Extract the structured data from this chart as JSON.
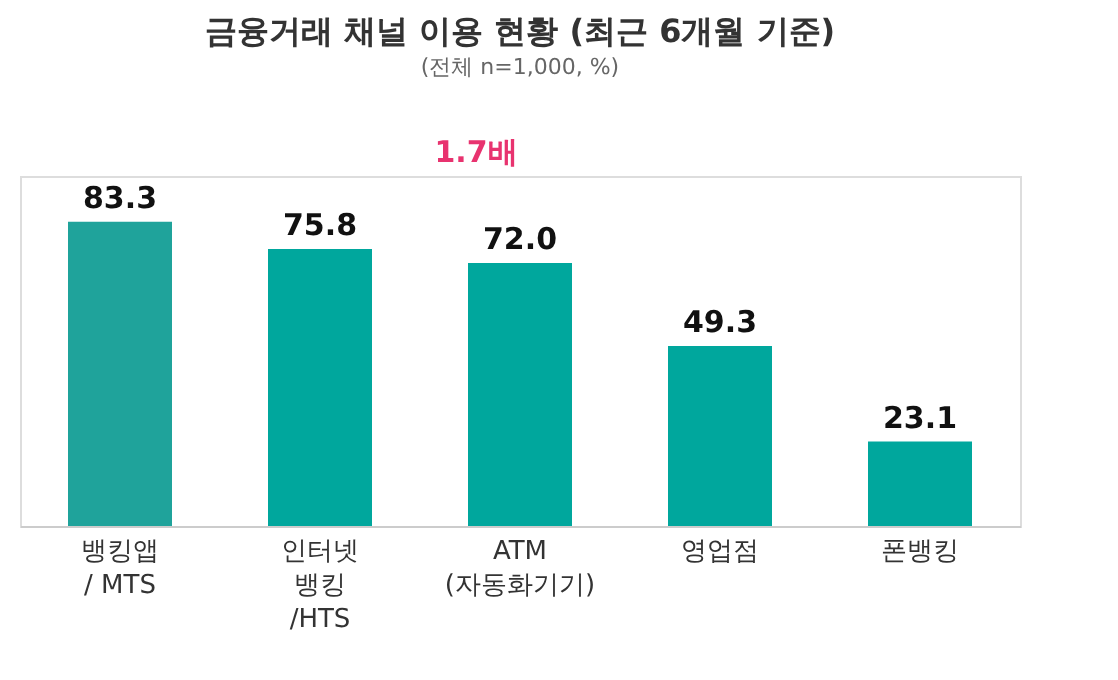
{
  "chart_data": {
    "type": "bar",
    "title": "금융거래 채널 이용 현황 (최근 6개월 기준)",
    "subtitle": "(전체 n=1,000, %)",
    "categories": [
      "뱅킹앱\n/ MTS",
      "인터넷\n뱅킹\n/HTS",
      "ATM\n(자동화기기)",
      "영업점",
      "폰뱅킹"
    ],
    "values": [
      83.3,
      75.8,
      72.0,
      49.3,
      23.1
    ],
    "value_labels": [
      "83.3",
      "75.8",
      "72.0",
      "49.3",
      "23.1"
    ],
    "colors": [
      "#1fa39b",
      "#00a79d",
      "#00a79d",
      "#00a79d",
      "#00a79d"
    ],
    "annotations": [
      "1.7배"
    ]
  }
}
